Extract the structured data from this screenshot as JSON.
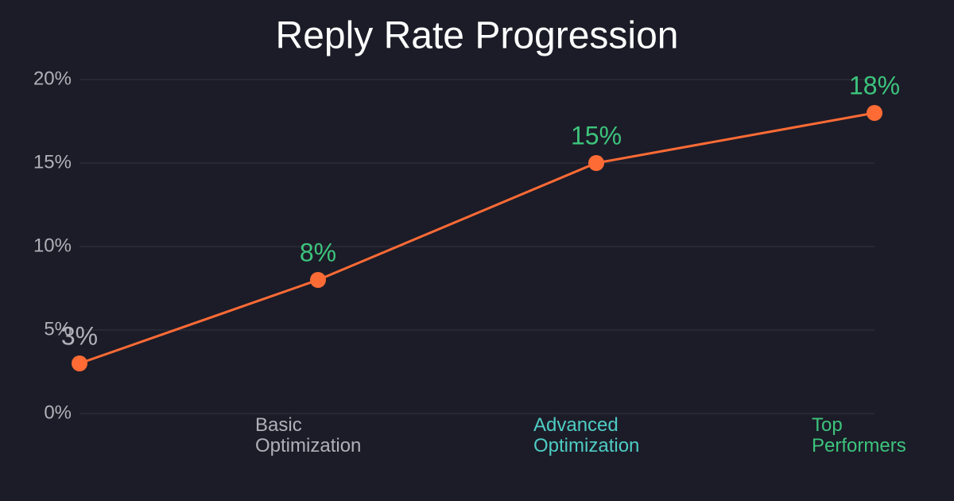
{
  "chart_data": {
    "type": "line",
    "title": "Reply Rate Progression",
    "categories": [
      null,
      "Basic Optimization",
      "Advanced Optimization",
      "Top Performers"
    ],
    "category_colors": [
      null,
      "#b0b0b8",
      "#4ecdc4",
      "#3cc47c"
    ],
    "values": [
      3,
      8,
      15,
      18
    ],
    "value_labels": [
      "3%",
      "8%",
      "15%",
      "18%"
    ],
    "value_label_colors": [
      "#b0b0b8",
      "#3cc47c",
      "#3cc47c",
      "#3cc47c"
    ],
    "color": "#ff6b35",
    "ylim": [
      0,
      20
    ],
    "yticks": [
      {
        "value": 0,
        "label": "0%"
      },
      {
        "value": 5,
        "label": "5%"
      },
      {
        "value": 10,
        "label": "10%"
      },
      {
        "value": 15,
        "label": "15%"
      },
      {
        "value": 20,
        "label": "20%"
      }
    ],
    "grid": true
  }
}
